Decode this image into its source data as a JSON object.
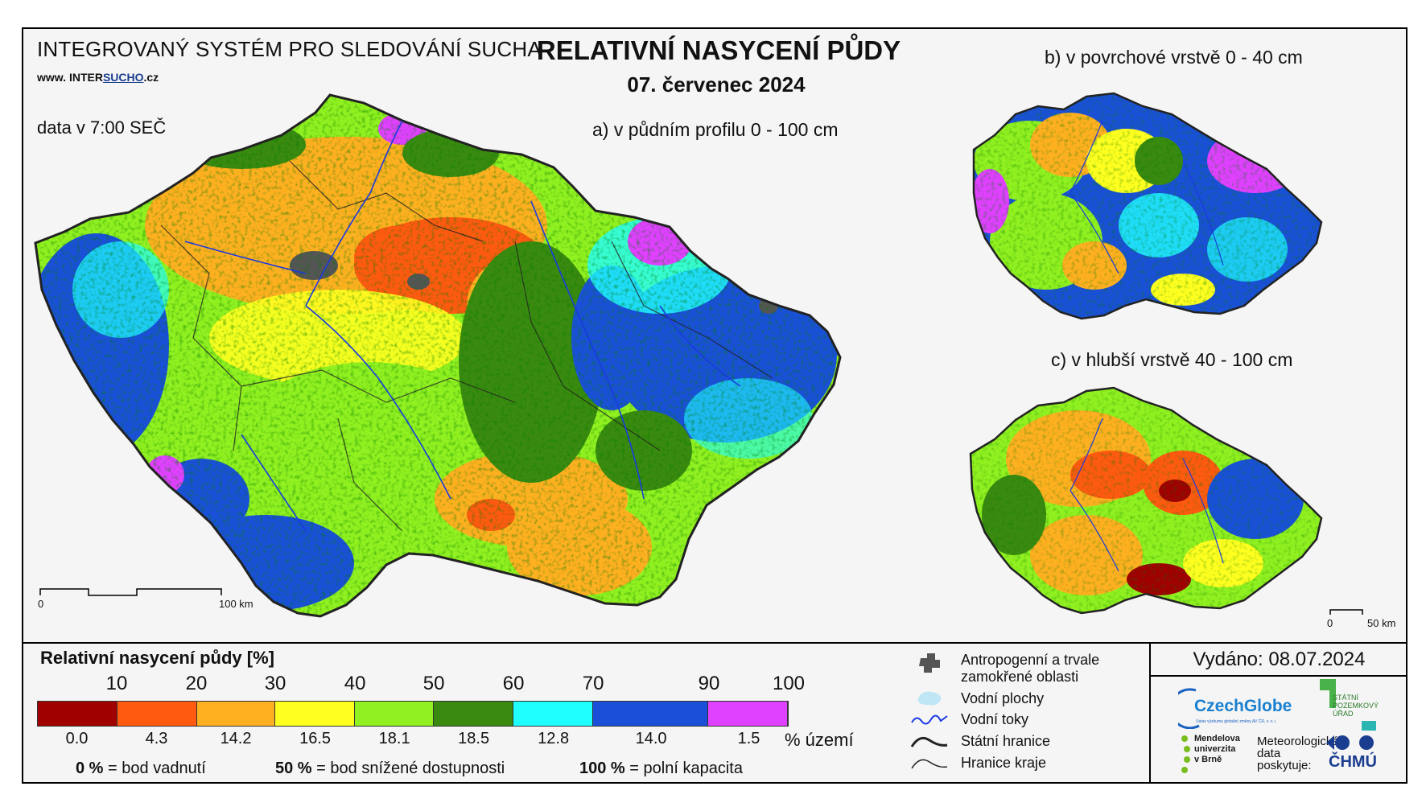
{
  "system_title": "INTEGROVANÝ SYSTÉM PRO SLEDOVÁNÍ SUCHA",
  "website": {
    "prefix": "www. ",
    "brand_plain": "INTER",
    "brand_underlined": "SUCHO",
    "suffix": ".cz"
  },
  "data_time": "data v 7:00 SEČ",
  "title": "RELATIVNÍ NASYCENÍ PŮDY",
  "date": "07. červenec 2024",
  "maps": {
    "a": {
      "label": "a) v půdním profilu 0 - 100 cm",
      "scale_start": "0",
      "scale_end": "100 km"
    },
    "b": {
      "label": "b) v povrchové vrstvě 0 - 40 cm"
    },
    "c": {
      "label": "c) v hlubší vrstvě 40 - 100 cm",
      "scale_start": "0",
      "scale_end": "50 km"
    }
  },
  "legend": {
    "title": "Relativní nasycení půdy [%]",
    "thresholds": [
      "10",
      "20",
      "30",
      "40",
      "50",
      "60",
      "70",
      "90",
      "100"
    ],
    "classes": [
      {
        "color": "#a00000",
        "share": "0.0"
      },
      {
        "color": "#ff5a10",
        "share": "4.3"
      },
      {
        "color": "#ffb020",
        "share": "14.2"
      },
      {
        "color": "#ffff20",
        "share": "16.5"
      },
      {
        "color": "#90f020",
        "share": "18.1"
      },
      {
        "color": "#3a8a10",
        "share": "18.5"
      },
      {
        "color": "#20ffff",
        "share": "12.8"
      },
      {
        "color": "#1a50d8",
        "share": "14.0"
      },
      {
        "color": "#e040ff",
        "share": "1.5"
      }
    ],
    "share_unit": "% území",
    "definitions": [
      {
        "value": "0 %",
        "text": "= bod vadnutí"
      },
      {
        "value": "50 %",
        "text": "= bod snížené dostupnosti"
      },
      {
        "value": "100 %",
        "text": "= polní kapacita"
      }
    ]
  },
  "map_key": [
    {
      "icon": "urban-area-icon",
      "label": "Antropogenní a trvale zamokřené oblasti"
    },
    {
      "icon": "water-body-icon",
      "label": "Vodní plochy"
    },
    {
      "icon": "river-icon",
      "label": "Vodní toky",
      "color": "#1a3ae0"
    },
    {
      "icon": "state-border-icon",
      "label": "Státní hranice"
    },
    {
      "icon": "region-border-icon",
      "label": "Hranice kraje"
    }
  ],
  "issued": "Vydáno: 08.07.2024",
  "logos": {
    "czechglobe": "CzechGlobe",
    "czechglobe_sub": "Ústav výzkumu globální změny AV ČR, v. v. i.",
    "spu": [
      "STÁTNÍ",
      "POZEMKOVÝ",
      "ÚŘAD"
    ],
    "mendelu": [
      "Mendelova",
      "univerzita",
      "v Brně"
    ],
    "met_data": [
      "Meteorologická",
      "data",
      "poskytuje:"
    ],
    "chmu": "ČHMÚ"
  }
}
